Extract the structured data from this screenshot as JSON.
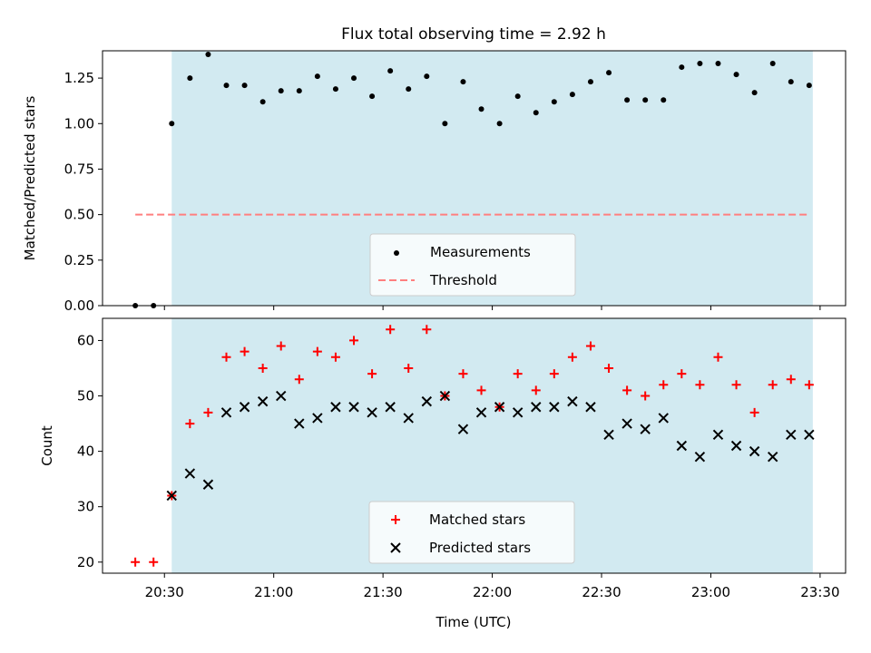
{
  "chart_data": [
    {
      "type": "scatter",
      "title": "Flux total observing time = 2.92 h",
      "xlabel": "",
      "ylabel": "Matched/Predicted stars",
      "ylim": [
        0.0,
        1.4
      ],
      "yticks": [
        "0.00",
        "0.25",
        "0.50",
        "0.75",
        "1.00",
        "1.25"
      ],
      "xlim": [
        "20:13",
        "23:37"
      ],
      "shaded_interval": [
        "20:32",
        "23:28"
      ],
      "shade_color": "#add8e6",
      "legend_position": "lower center",
      "series": [
        {
          "name": "Measurements",
          "marker": "dot",
          "color": "#000000",
          "x": [
            "20:22",
            "20:27",
            "20:32",
            "20:37",
            "20:42",
            "20:47",
            "20:52",
            "20:57",
            "21:02",
            "21:07",
            "21:12",
            "21:17",
            "21:22",
            "21:27",
            "21:32",
            "21:37",
            "21:42",
            "21:47",
            "21:52",
            "21:57",
            "22:02",
            "22:07",
            "22:12",
            "22:17",
            "22:22",
            "22:27",
            "22:32",
            "22:37",
            "22:42",
            "22:47",
            "22:52",
            "22:57",
            "23:02",
            "23:07",
            "23:12",
            "23:17",
            "23:22",
            "23:27"
          ],
          "values": [
            0.0,
            0.0,
            1.0,
            1.25,
            1.38,
            1.21,
            1.21,
            1.12,
            1.18,
            1.18,
            1.26,
            1.19,
            1.25,
            1.15,
            1.29,
            1.19,
            1.26,
            1.0,
            1.23,
            1.08,
            1.0,
            1.15,
            1.06,
            1.12,
            1.16,
            1.23,
            1.28,
            1.13,
            1.13,
            1.13,
            1.31,
            1.33,
            1.33,
            1.27,
            1.17,
            1.33,
            1.23,
            1.21
          ]
        },
        {
          "name": "Threshold",
          "style": "dashed",
          "color": "#ff7f7f",
          "x": [
            "20:22",
            "23:27"
          ],
          "values": [
            0.5,
            0.5
          ]
        }
      ]
    },
    {
      "type": "scatter",
      "title": "",
      "xlabel": "Time (UTC)",
      "ylabel": "Count",
      "ylim": [
        18,
        64
      ],
      "yticks": [
        "20",
        "30",
        "40",
        "50",
        "60"
      ],
      "xlim": [
        "20:13",
        "23:37"
      ],
      "xticks": [
        "20:30",
        "21:00",
        "21:30",
        "22:00",
        "22:30",
        "23:00",
        "23:30"
      ],
      "shaded_interval": [
        "20:32",
        "23:28"
      ],
      "shade_color": "#add8e6",
      "legend_position": "lower center",
      "series": [
        {
          "name": "Matched stars",
          "marker": "plus",
          "color": "#ff0000",
          "x": [
            "20:22",
            "20:27",
            "20:32",
            "20:37",
            "20:42",
            "20:47",
            "20:52",
            "20:57",
            "21:02",
            "21:07",
            "21:12",
            "21:17",
            "21:22",
            "21:27",
            "21:32",
            "21:37",
            "21:42",
            "21:47",
            "21:52",
            "21:57",
            "22:02",
            "22:07",
            "22:12",
            "22:17",
            "22:22",
            "22:27",
            "22:32",
            "22:37",
            "22:42",
            "22:47",
            "22:52",
            "22:57",
            "23:02",
            "23:07",
            "23:12",
            "23:17",
            "23:22",
            "23:27"
          ],
          "values": [
            20,
            20,
            32,
            45,
            47,
            57,
            58,
            55,
            59,
            53,
            58,
            57,
            60,
            54,
            62,
            55,
            62,
            50,
            54,
            51,
            48,
            54,
            51,
            54,
            57,
            59,
            55,
            51,
            50,
            52,
            54,
            52,
            57,
            52,
            47,
            52,
            53,
            52
          ]
        },
        {
          "name": "Predicted stars",
          "marker": "x",
          "color": "#000000",
          "x": [
            "20:32",
            "20:37",
            "20:42",
            "20:47",
            "20:52",
            "20:57",
            "21:02",
            "21:07",
            "21:12",
            "21:17",
            "21:22",
            "21:27",
            "21:32",
            "21:37",
            "21:42",
            "21:47",
            "21:52",
            "21:57",
            "22:02",
            "22:07",
            "22:12",
            "22:17",
            "22:22",
            "22:27",
            "22:32",
            "22:37",
            "22:42",
            "22:47",
            "22:52",
            "22:57",
            "23:02",
            "23:07",
            "23:12",
            "23:17",
            "23:22",
            "23:27"
          ],
          "values": [
            32,
            36,
            34,
            47,
            48,
            49,
            50,
            45,
            46,
            48,
            48,
            47,
            48,
            46,
            49,
            50,
            44,
            47,
            48,
            47,
            48,
            48,
            49,
            48,
            43,
            45,
            44,
            46,
            41,
            39,
            43,
            41,
            40,
            39,
            43,
            43
          ]
        }
      ]
    }
  ]
}
